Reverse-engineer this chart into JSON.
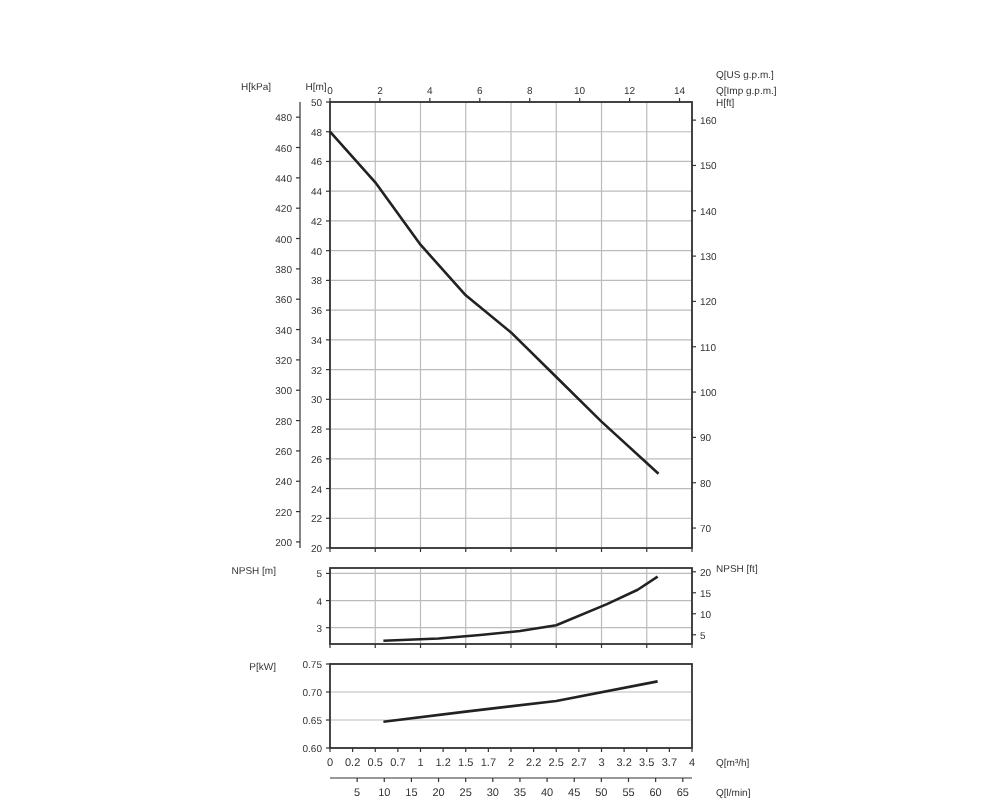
{
  "chart_data": [
    {
      "type": "line",
      "tick_labels": "y",
      "ylabel": "H[m]",
      "y2label": "H[ft]",
      "y3label": "H[kPa]",
      "x2label": "Q[US g.p.m.]",
      "annotations": [
        "Q[Imp g.p.m.]"
      ],
      "grid": true,
      "xlim": [
        0,
        4
      ],
      "xticks": [
        {
          "value": 0,
          "label": null
        },
        {
          "value": 0.5,
          "label": null
        },
        {
          "value": 1,
          "label": null
        },
        {
          "value": 1.5,
          "label": null
        },
        {
          "value": 2,
          "label": null
        },
        {
          "value": 2.5,
          "label": null
        },
        {
          "value": 3,
          "label": null
        },
        {
          "value": 3.5,
          "label": null
        },
        {
          "value": 4,
          "label": null
        }
      ],
      "x2lim": [
        0,
        14.5
      ],
      "x2ticks": [
        0,
        2,
        4,
        6,
        8,
        10,
        12,
        14
      ],
      "ylim": [
        20,
        50
      ],
      "yticks": [
        20,
        22,
        24,
        26,
        28,
        30,
        32,
        34,
        36,
        38,
        40,
        42,
        44,
        46,
        48,
        50
      ],
      "y2lim": [
        65.6,
        164
      ],
      "y2ticks": [
        70,
        80,
        90,
        100,
        110,
        120,
        130,
        140,
        150,
        160
      ],
      "y3lim": [
        196,
        490
      ],
      "y3ticks": [
        200,
        220,
        240,
        260,
        280,
        300,
        320,
        340,
        360,
        380,
        400,
        420,
        440,
        460,
        480
      ],
      "x": [
        0,
        0.5,
        1,
        1.5,
        2,
        2.5,
        3,
        3.63
      ],
      "series": [
        {
          "color": "#222222",
          "values": [
            48,
            44.6,
            40.4,
            37,
            34.5,
            31.5,
            28.5,
            25
          ]
        }
      ]
    },
    {
      "type": "line",
      "tick_labels": "y",
      "ylabel": "NPSH [m]",
      "y2label": "NPSH [ft]",
      "grid": true,
      "xlim": [
        0,
        4
      ],
      "xticks": [
        {
          "value": 0,
          "label": null
        },
        {
          "value": 0.5,
          "label": null
        },
        {
          "value": 1,
          "label": null
        },
        {
          "value": 1.5,
          "label": null
        },
        {
          "value": 2,
          "label": null
        },
        {
          "value": 2.5,
          "label": null
        },
        {
          "value": 3,
          "label": null
        },
        {
          "value": 3.5,
          "label": null
        },
        {
          "value": 4,
          "label": null
        }
      ],
      "ylim": [
        2.4,
        5.2
      ],
      "yticks": [
        3,
        4,
        5
      ],
      "y2lim": [
        2.8,
        20.9
      ],
      "y2ticks": [
        5,
        10,
        15,
        20
      ],
      "x": [
        0.59,
        1.2,
        1.66,
        2.1,
        2.5,
        3.06,
        3.4,
        3.62
      ],
      "series": [
        {
          "color": "#222222",
          "values": [
            2.52,
            2.6,
            2.73,
            2.88,
            3.09,
            3.87,
            4.4,
            4.88
          ]
        }
      ]
    },
    {
      "type": "line",
      "ylabel": "P[kW]",
      "xlabel": "Q[m³/h]",
      "x2label": "Q[l/min]",
      "grid": "y",
      "xlim": [
        0,
        4
      ],
      "xticks": [
        0,
        {
          "value": 0.25,
          "label": "0.2"
        },
        0.5,
        {
          "value": 0.75,
          "label": "0.7"
        },
        1,
        {
          "value": 1.25,
          "label": "1.2"
        },
        1.5,
        {
          "value": 1.75,
          "label": "1.7"
        },
        2,
        {
          "value": 2.25,
          "label": "2.2"
        },
        2.5,
        {
          "value": 2.75,
          "label": "2.7"
        },
        3,
        {
          "value": 3.25,
          "label": "3.2"
        },
        3.5,
        {
          "value": 3.75,
          "label": "3.7"
        },
        4
      ],
      "x2lim": [
        0,
        66.7
      ],
      "x2ticks": [
        5,
        10,
        15,
        20,
        25,
        30,
        35,
        40,
        45,
        50,
        55,
        60,
        65
      ],
      "ylim": [
        0.6,
        0.75
      ],
      "yticks": [
        {
          "value": 0.6,
          "label": "0.60"
        },
        {
          "value": 0.65,
          "label": "0.65"
        },
        {
          "value": 0.7,
          "label": "0.70"
        },
        {
          "value": 0.75,
          "label": "0.75"
        }
      ],
      "x": [
        0.59,
        1.5,
        2.5,
        3.62
      ],
      "series": [
        {
          "color": "#222222",
          "values": [
            0.647,
            0.665,
            0.684,
            0.719
          ]
        }
      ]
    }
  ]
}
